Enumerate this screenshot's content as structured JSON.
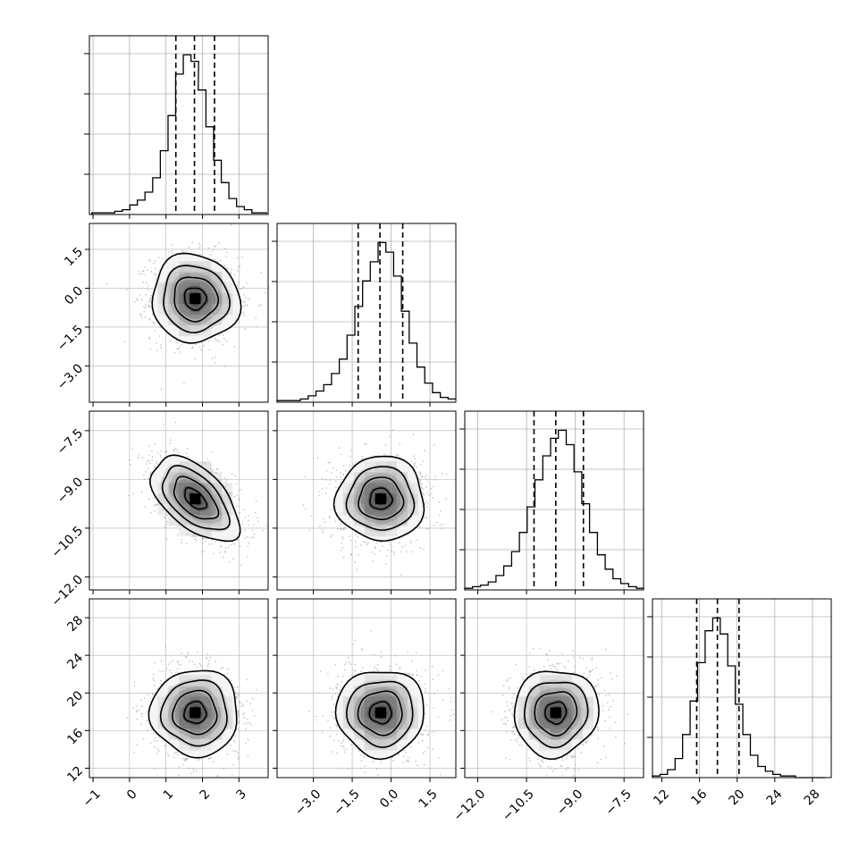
{
  "chart_data": {
    "type": "corner",
    "parameters": [
      {
        "ticks": [
          -1,
          0,
          1,
          2,
          3
        ],
        "tick_labels": [
          "−1",
          "0",
          "1",
          "2",
          "3"
        ],
        "range": [
          -1.1,
          3.8
        ],
        "quantiles": [
          1.27,
          1.78,
          2.33
        ],
        "hist_x": [
          -0.93,
          -0.72,
          -0.51,
          -0.3,
          -0.09,
          0.11,
          0.32,
          0.53,
          0.74,
          0.95,
          1.16,
          1.37,
          1.58,
          1.79,
          1.99,
          2.2,
          2.41,
          2.62,
          2.83,
          3.04,
          3.25,
          3.46,
          3.67
        ],
        "hist_counts": [
          1,
          1,
          1,
          2,
          3,
          6,
          9,
          14,
          23,
          40,
          62,
          88,
          100,
          96,
          78,
          55,
          34,
          20,
          10,
          5,
          3,
          1,
          1
        ]
      },
      {
        "ticks": [
          -3.0,
          -1.5,
          0.0,
          1.5
        ],
        "tick_labels": [
          "−3.0",
          "−1.5",
          "0.0",
          "1.5"
        ],
        "range": [
          -4.4,
          2.5
        ],
        "quantiles": [
          -1.27,
          -0.43,
          0.45
        ],
        "hist_x": [
          -4.25,
          -3.95,
          -3.65,
          -3.35,
          -3.05,
          -2.75,
          -2.45,
          -2.15,
          -1.85,
          -1.55,
          -1.25,
          -0.95,
          -0.65,
          -0.35,
          -0.05,
          0.25,
          0.55,
          0.85,
          1.15,
          1.45,
          1.75,
          2.05,
          2.35
        ],
        "hist_counts": [
          1,
          1,
          1,
          2,
          4,
          7,
          11,
          18,
          27,
          42,
          60,
          76,
          88,
          100,
          94,
          79,
          57,
          37,
          22,
          12,
          6,
          3,
          2
        ]
      },
      {
        "ticks": [
          -12.0,
          -10.5,
          -9.0,
          -7.5
        ],
        "tick_labels": [
          "−12.0",
          "−10.5",
          "−9.0",
          "−7.5"
        ],
        "range": [
          -12.4,
          -6.9
        ],
        "quantiles": [
          -10.27,
          -9.6,
          -8.75
        ],
        "hist_x": [
          -12.28,
          -12.04,
          -11.8,
          -11.56,
          -11.32,
          -11.08,
          -10.84,
          -10.6,
          -10.36,
          -10.12,
          -9.88,
          -9.64,
          -9.4,
          -9.16,
          -8.92,
          -8.68,
          -8.44,
          -8.2,
          -7.96,
          -7.72,
          -7.48,
          -7.24,
          -7.0
        ],
        "hist_counts": [
          1,
          2,
          3,
          5,
          9,
          15,
          24,
          36,
          52,
          69,
          84,
          95,
          100,
          91,
          74,
          54,
          36,
          22,
          13,
          7,
          4,
          2,
          1
        ]
      },
      {
        "ticks": [
          12,
          16,
          20,
          24,
          28
        ],
        "tick_labels": [
          "12",
          "16",
          "20",
          "24",
          "28"
        ],
        "range": [
          11.0,
          30.0
        ],
        "quantiles": [
          15.7,
          17.9,
          20.2
        ],
        "hist_x": [
          11.4,
          12.2,
          13.0,
          13.8,
          14.6,
          15.4,
          16.2,
          17.0,
          17.8,
          18.6,
          19.4,
          20.2,
          21.0,
          21.8,
          22.6,
          23.4,
          24.2,
          25.0,
          25.8,
          26.6,
          27.4,
          28.2,
          29.0
        ],
        "hist_counts": [
          1,
          2,
          5,
          12,
          27,
          48,
          72,
          92,
          100,
          90,
          70,
          46,
          27,
          14,
          7,
          4,
          2,
          1,
          1,
          0,
          0,
          0,
          0
        ]
      }
    ],
    "pairs": [
      {
        "row": 1,
        "col": 0,
        "mean": [
          1.8,
          -0.4
        ],
        "sd": [
          0.6,
          0.85
        ],
        "corr": -0.05
      },
      {
        "row": 2,
        "col": 0,
        "mean": [
          1.8,
          -9.6
        ],
        "sd": [
          0.6,
          0.65
        ],
        "corr": -0.55
      },
      {
        "row": 2,
        "col": 1,
        "mean": [
          -0.4,
          -9.6
        ],
        "sd": [
          0.85,
          0.65
        ],
        "corr": 0.0
      },
      {
        "row": 3,
        "col": 0,
        "mean": [
          1.8,
          17.9
        ],
        "sd": [
          0.6,
          2.3
        ],
        "corr": 0.0
      },
      {
        "row": 3,
        "col": 1,
        "mean": [
          -0.4,
          17.9
        ],
        "sd": [
          0.85,
          2.3
        ],
        "corr": 0.0
      },
      {
        "row": 3,
        "col": 2,
        "mean": [
          -9.6,
          17.9
        ],
        "sd": [
          0.65,
          2.3
        ],
        "corr": 0.05
      }
    ],
    "contour_levels_sigma": [
      0.5,
      1.0,
      1.5,
      2.0
    ],
    "grid": true,
    "colors": {
      "line": "#000000",
      "grid": "#b0b0b0",
      "point": "#9e9e9e"
    }
  }
}
